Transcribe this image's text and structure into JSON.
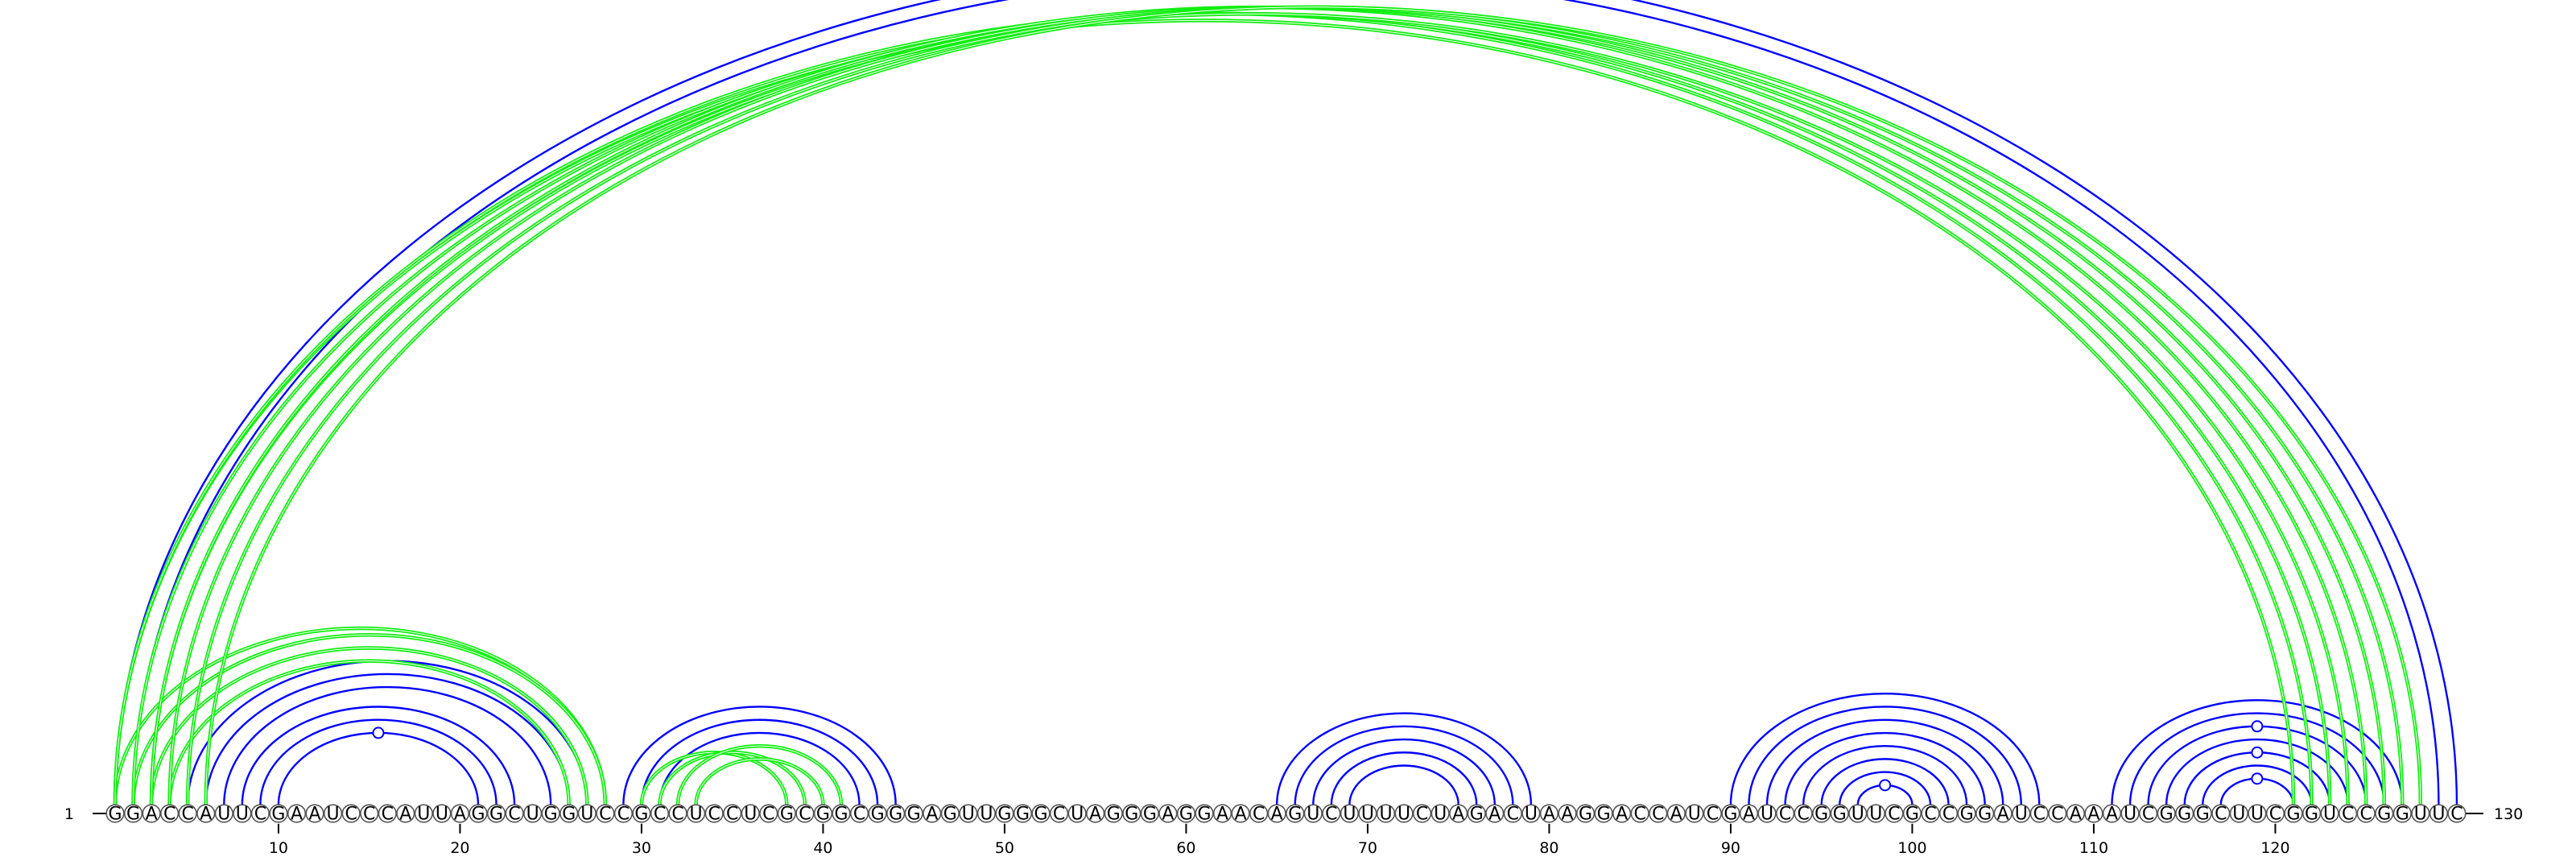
{
  "sequence": "GGACCAUUCGAAUCCCAUUAGGCUGGUCCGCCUCCUCGCGGCGGGAGUUGGGCUAGGGAGGAACAGUCUUUUCUAGACUAAGGACCAUCGAUCCGGUUCGCCGGAUCCAAAUCGGGCUUCGGUCCGGUUC",
  "start_label": "1",
  "end_label": "130",
  "ticks": [
    {
      "pos": 10,
      "label": "10"
    },
    {
      "pos": 20,
      "label": "20"
    },
    {
      "pos": 30,
      "label": "30"
    },
    {
      "pos": 40,
      "label": "40"
    },
    {
      "pos": 50,
      "label": "50"
    },
    {
      "pos": 60,
      "label": "60"
    },
    {
      "pos": 70,
      "label": "70"
    },
    {
      "pos": 80,
      "label": "80"
    },
    {
      "pos": 90,
      "label": "90"
    },
    {
      "pos": 100,
      "label": "100"
    },
    {
      "pos": 110,
      "label": "110"
    },
    {
      "pos": 120,
      "label": "120"
    }
  ],
  "colors": {
    "pair": "#0000ff",
    "crossing": "#11ee11"
  },
  "blue_arcs": [
    [
      1,
      130
    ],
    [
      2,
      129
    ],
    [
      5,
      27
    ],
    [
      6,
      26
    ],
    [
      7,
      25
    ],
    [
      8,
      23
    ],
    [
      9,
      22
    ],
    [
      10,
      21
    ],
    [
      29,
      44
    ],
    [
      30,
      43
    ],
    [
      31,
      42
    ],
    [
      32,
      41
    ],
    [
      33,
      40
    ],
    [
      65,
      79
    ],
    [
      66,
      78
    ],
    [
      67,
      77
    ],
    [
      68,
      76
    ],
    [
      69,
      75
    ],
    [
      90,
      107
    ],
    [
      91,
      106
    ],
    [
      92,
      105
    ],
    [
      93,
      104
    ],
    [
      94,
      103
    ],
    [
      95,
      102
    ],
    [
      96,
      101
    ],
    [
      97,
      100
    ],
    [
      111,
      127
    ],
    [
      112,
      126
    ],
    [
      113,
      125
    ],
    [
      114,
      124
    ],
    [
      115,
      123
    ],
    [
      116,
      122
    ],
    [
      117,
      121
    ]
  ],
  "green_arcs": [
    [
      1,
      28
    ],
    [
      2,
      28
    ],
    [
      3,
      27
    ],
    [
      4,
      26
    ],
    [
      1,
      121
    ],
    [
      1,
      122
    ],
    [
      2,
      123
    ],
    [
      3,
      124
    ],
    [
      3,
      125
    ],
    [
      4,
      126
    ],
    [
      5,
      127
    ],
    [
      6,
      128
    ],
    [
      30,
      38
    ],
    [
      31,
      39
    ],
    [
      32,
      41
    ],
    [
      33,
      40
    ]
  ],
  "bulge_markers": [
    {
      "arc": 1,
      "color": "#0000ff"
    },
    {
      "arc": 7,
      "color": "#0000ff"
    },
    {
      "arc": 25,
      "color": "#0000ff"
    },
    {
      "arc": 28,
      "color": "#0000ff"
    },
    {
      "arc": 30,
      "color": "#0000ff"
    },
    {
      "arc": 32,
      "color": "#0000ff"
    }
  ]
}
